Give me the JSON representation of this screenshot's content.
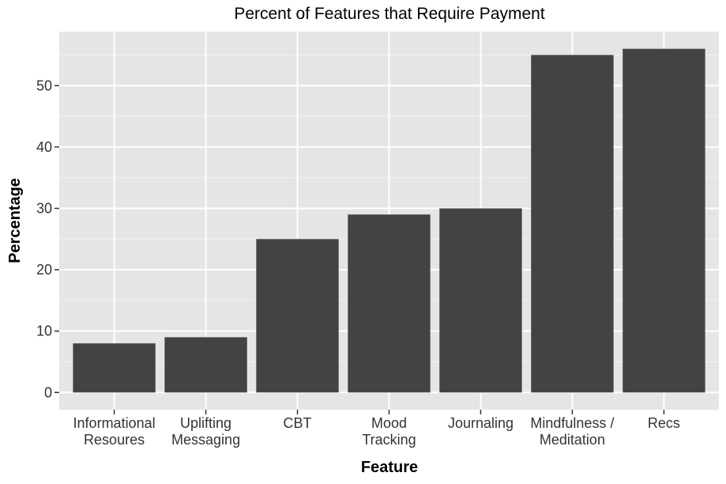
{
  "chart_data": {
    "type": "bar",
    "title": "Percent of Features that Require Payment",
    "xlabel": "Feature",
    "ylabel": "Percentage",
    "categories": [
      [
        "Informational",
        "Resoures"
      ],
      [
        "Uplifting",
        "Messaging"
      ],
      [
        "CBT"
      ],
      [
        "Mood",
        "Tracking"
      ],
      [
        "Journaling"
      ],
      [
        "Mindfulness /",
        "Meditation"
      ],
      [
        "Recs"
      ]
    ],
    "values": [
      8,
      9,
      25,
      29,
      30,
      55,
      56
    ],
    "ylim": [
      0,
      58.8
    ],
    "yticks": [
      0,
      10,
      20,
      30,
      40,
      50
    ],
    "ytick_labels": [
      "0",
      "10",
      "20",
      "30",
      "40",
      "50"
    ],
    "grid": true,
    "legend": "none",
    "colors": {
      "bar": "#434343",
      "panel": "#e5e5e5",
      "grid_major": "#ffffff",
      "grid_minor": "#f2f2f2",
      "tick": "#333333"
    }
  }
}
